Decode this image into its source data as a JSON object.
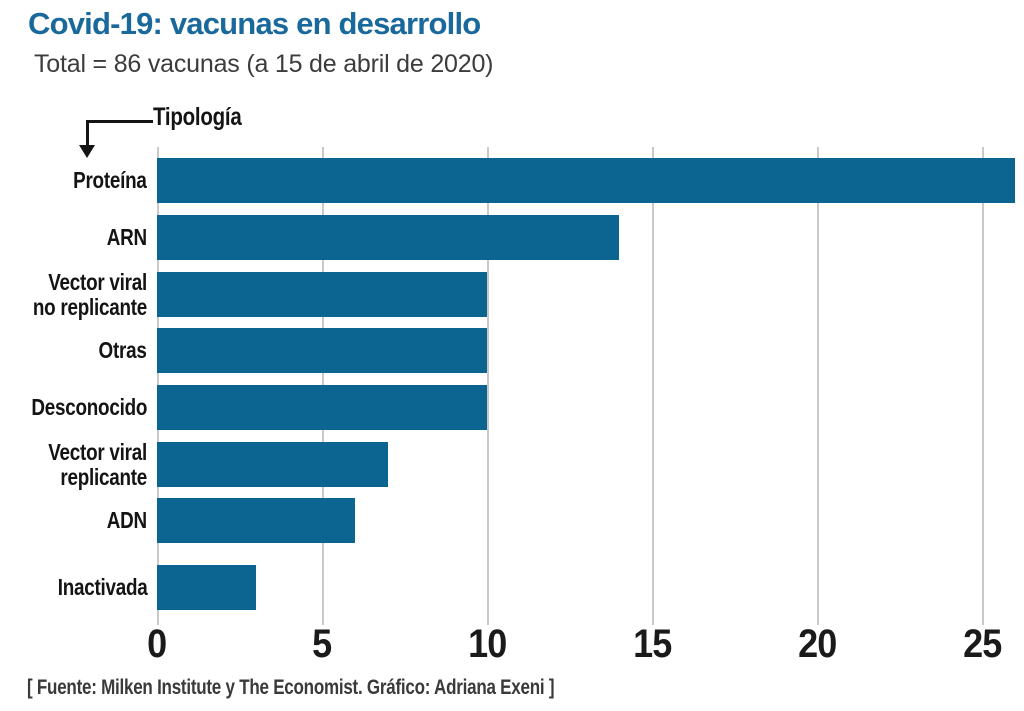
{
  "header": {
    "title": "Covid-19: vacunas en desarrollo",
    "subtitle": "Total = 86 vacunas (a 15 de abril de 2020)"
  },
  "annotation": {
    "label": "Tipología"
  },
  "chart_data": {
    "type": "bar",
    "orientation": "horizontal",
    "title": "Covid-19: vacunas en desarrollo",
    "subtitle": "Total = 86 vacunas (a 15 de abril de 2020)",
    "categories": [
      "Proteína",
      "ARN",
      "Vector viral no replicante",
      "Otras",
      "Desconocido",
      "Vector viral replicante",
      "ADN",
      "Inactivada"
    ],
    "values": [
      26,
      14,
      10,
      10,
      10,
      7,
      6,
      3
    ],
    "total": 86,
    "xlabel": "",
    "ylabel": "Tipología",
    "xticks": [
      0,
      5,
      10,
      15,
      20,
      25
    ],
    "xlim": [
      0,
      26.3
    ],
    "grid": true,
    "legend": false
  },
  "footer": {
    "source": "[ Fuente: Milken Institute y The Economist. Gráfico: Adriana Exeni ]"
  },
  "colors": {
    "title": "#1a699c",
    "bar": "#0c6490",
    "grid": "#c9c9c9",
    "label_text": "#141414",
    "subtitle_text": "#3c3c3c",
    "footer_text": "#3a3a3a"
  }
}
